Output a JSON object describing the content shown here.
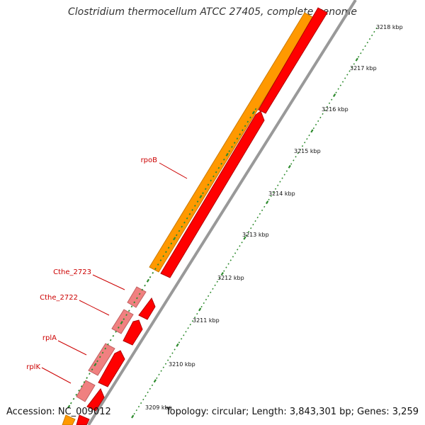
{
  "title": "Clostridium thermocellum ATCC 27405, complete genome",
  "footer": {
    "accession": "Accession: NC_009012",
    "summary": "Topology: circular; Length: 3,843,301 bp; Genes: 3,259"
  },
  "colors": {
    "orange_feature": "#ff9900",
    "red_feature": "#ff0000",
    "pink_feature": "#f08080",
    "backbone": "#888888",
    "tick": "#2e8b2e",
    "gene_label": "#cc0000"
  },
  "gene_labels": [
    {
      "name": "rpoB"
    },
    {
      "name": "Cthe_2723"
    },
    {
      "name": "Cthe_2722"
    },
    {
      "name": "rplA"
    },
    {
      "name": "rplK"
    }
  ],
  "scale_labels": [
    "3218 kbp",
    "3217 kbp",
    "3216 kbp",
    "3215 kbp",
    "3214 kbp",
    "3213 kbp",
    "3212 kbp",
    "3211 kbp",
    "3210 kbp",
    "3209 kbp"
  ]
}
